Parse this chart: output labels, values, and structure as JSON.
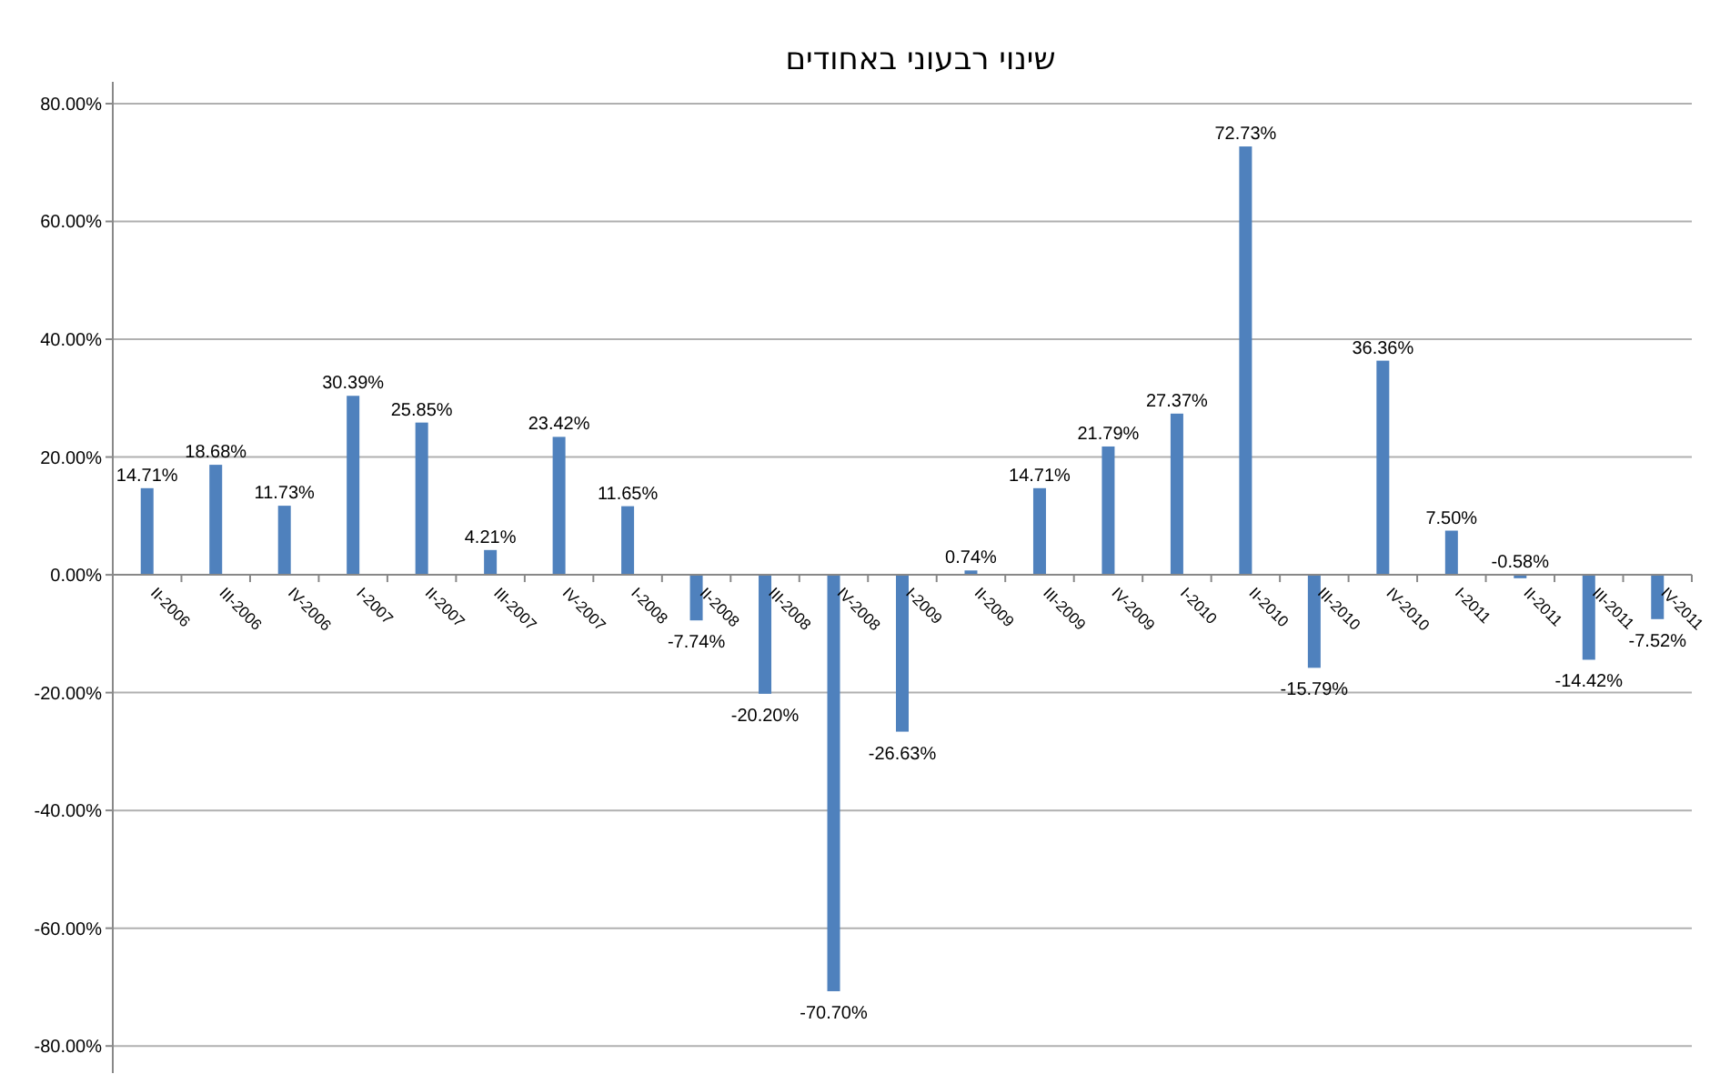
{
  "chart_data": {
    "type": "bar",
    "title": "שינוי רבעוני באחודים",
    "categories": [
      "II-2006",
      "III-2006",
      "IV-2006",
      "I-2007",
      "II-2007",
      "III-2007",
      "IV-2007",
      "I-2008",
      "II-2008",
      "III-2008",
      "IV-2008",
      "I-2009",
      "II-2009",
      "III-2009",
      "IV-2009",
      "I-2010",
      "II-2010",
      "III-2010",
      "IV-2010",
      "I-2011",
      "II-2011",
      "III-2011",
      "IV-2011"
    ],
    "values": [
      14.71,
      18.68,
      11.73,
      30.39,
      25.85,
      4.21,
      23.42,
      11.65,
      -7.74,
      -20.2,
      -70.7,
      -26.63,
      0.74,
      14.71,
      21.79,
      27.37,
      72.73,
      -15.79,
      36.36,
      7.5,
      -0.58,
      -14.42,
      -7.52
    ],
    "value_labels": [
      "14.71%",
      "18.68%",
      "11.73%",
      "30.39%",
      "25.85%",
      "4.21%",
      "23.42%",
      "11.65%",
      "-7.74%",
      "-20.20%",
      "-70.70%",
      "-26.63%",
      "0.74%",
      "14.71%",
      "21.79%",
      "27.37%",
      "72.73%",
      "-15.79%",
      "36.36%",
      "7.50%",
      "-0.58%",
      "-14.42%",
      "-7.52%"
    ],
    "color": "#4f81bd",
    "ylim": [
      -84.6,
      83.7
    ],
    "yticks": [
      {
        "value": -80,
        "label": "-80.00%"
      },
      {
        "value": -60,
        "label": "-60.00%"
      },
      {
        "value": -40,
        "label": "-40.00%"
      },
      {
        "value": -20,
        "label": "-20.00%"
      },
      {
        "value": 0,
        "label": "0.00%"
      },
      {
        "value": 20,
        "label": "20.00%"
      },
      {
        "value": 40,
        "label": "40.00%"
      },
      {
        "value": 60,
        "label": "60.00%"
      },
      {
        "value": 80,
        "label": "80.00%"
      }
    ],
    "grid": "y"
  }
}
